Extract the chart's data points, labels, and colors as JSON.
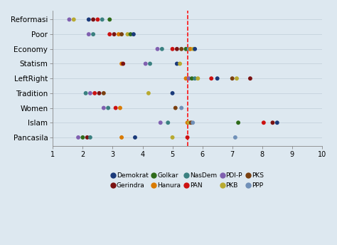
{
  "categories": [
    "Reformasi",
    "Poor",
    "Economy",
    "Statism",
    "LeftRight",
    "Tradition",
    "Women",
    "Islam",
    "Pancasila"
  ],
  "dashed_line_x": 5.5,
  "xlim": [
    1,
    10
  ],
  "xticks": [
    1,
    2,
    3,
    4,
    5,
    6,
    7,
    8,
    9,
    10
  ],
  "background_color": "#dde8f0",
  "party_colors": {
    "Demokrat": "#1a3a7a",
    "Gerindra": "#7a1212",
    "Golkar": "#2e6b1a",
    "Hanura": "#d97a00",
    "NasDem": "#3a8080",
    "PAN": "#cc1111",
    "PDI-P": "#8060b0",
    "PKB": "#b8aa30",
    "PKS": "#7a4010",
    "PPP": "#7090b8"
  },
  "parties_order": [
    "Demokrat",
    "Gerindra",
    "Golkar",
    "Hanura",
    "NasDem",
    "PAN",
    "PDI-P",
    "PKB",
    "PKS",
    "PPP"
  ],
  "dot_data": [
    {
      "cat": "Reformasi",
      "party": "PDI-P",
      "x": 1.55
    },
    {
      "cat": "Reformasi",
      "party": "PKB",
      "x": 1.7
    },
    {
      "cat": "Reformasi",
      "party": "Demokrat",
      "x": 2.2
    },
    {
      "cat": "Reformasi",
      "party": "Gerindra",
      "x": 2.35
    },
    {
      "cat": "Reformasi",
      "party": "PAN",
      "x": 2.5
    },
    {
      "cat": "Reformasi",
      "party": "NasDem",
      "x": 2.65
    },
    {
      "cat": "Reformasi",
      "party": "Golkar",
      "x": 2.9
    },
    {
      "cat": "Poor",
      "party": "PDI-P",
      "x": 2.2
    },
    {
      "cat": "Poor",
      "party": "NasDem",
      "x": 2.35
    },
    {
      "cat": "Poor",
      "party": "PAN",
      "x": 2.9
    },
    {
      "cat": "Poor",
      "party": "Gerindra",
      "x": 3.05
    },
    {
      "cat": "Poor",
      "party": "Hanura",
      "x": 3.2
    },
    {
      "cat": "Poor",
      "party": "PKS",
      "x": 3.3
    },
    {
      "cat": "Poor",
      "party": "PKB",
      "x": 3.5
    },
    {
      "cat": "Poor",
      "party": "Golkar",
      "x": 3.6
    },
    {
      "cat": "Poor",
      "party": "Demokrat",
      "x": 3.7
    },
    {
      "cat": "Economy",
      "party": "PDI-P",
      "x": 4.5
    },
    {
      "cat": "Economy",
      "party": "NasDem",
      "x": 4.65
    },
    {
      "cat": "Economy",
      "party": "PAN",
      "x": 5.0
    },
    {
      "cat": "Economy",
      "party": "Gerindra",
      "x": 5.15
    },
    {
      "cat": "Economy",
      "party": "PKS",
      "x": 5.3
    },
    {
      "cat": "Economy",
      "party": "Golkar",
      "x": 5.45
    },
    {
      "cat": "Economy",
      "party": "PPP",
      "x": 5.55
    },
    {
      "cat": "Economy",
      "party": "Hanura",
      "x": 5.6
    },
    {
      "cat": "Economy",
      "party": "PKB",
      "x": 5.7
    },
    {
      "cat": "Economy",
      "party": "Demokrat",
      "x": 5.75
    },
    {
      "cat": "Statism",
      "party": "Hanura",
      "x": 3.3
    },
    {
      "cat": "Statism",
      "party": "Gerindra",
      "x": 3.35
    },
    {
      "cat": "Statism",
      "party": "PDI-P",
      "x": 4.1
    },
    {
      "cat": "Statism",
      "party": "NasDem",
      "x": 4.25
    },
    {
      "cat": "Statism",
      "party": "Demokrat",
      "x": 5.15
    },
    {
      "cat": "Statism",
      "party": "PKB",
      "x": 5.25
    },
    {
      "cat": "LeftRight",
      "party": "Hanura",
      "x": 5.45
    },
    {
      "cat": "LeftRight",
      "party": "PDI-P",
      "x": 5.55
    },
    {
      "cat": "LeftRight",
      "party": "Golkar",
      "x": 5.65
    },
    {
      "cat": "LeftRight",
      "party": "NasDem",
      "x": 5.75
    },
    {
      "cat": "LeftRight",
      "party": "PKB",
      "x": 5.85
    },
    {
      "cat": "LeftRight",
      "party": "PAN",
      "x": 6.3
    },
    {
      "cat": "LeftRight",
      "party": "Demokrat",
      "x": 6.5
    },
    {
      "cat": "LeftRight",
      "party": "PKS",
      "x": 7.0
    },
    {
      "cat": "LeftRight",
      "party": "PKB",
      "x": 7.15
    },
    {
      "cat": "LeftRight",
      "party": "Gerindra",
      "x": 7.6
    },
    {
      "cat": "Tradition",
      "party": "NasDem",
      "x": 2.1
    },
    {
      "cat": "Tradition",
      "party": "PDI-P",
      "x": 2.25
    },
    {
      "cat": "Tradition",
      "party": "PAN",
      "x": 2.4
    },
    {
      "cat": "Tradition",
      "party": "Gerindra",
      "x": 2.55
    },
    {
      "cat": "Tradition",
      "party": "PKS",
      "x": 2.7
    },
    {
      "cat": "Tradition",
      "party": "PKB",
      "x": 4.2
    },
    {
      "cat": "Tradition",
      "party": "Demokrat",
      "x": 5.0
    },
    {
      "cat": "Women",
      "party": "PDI-P",
      "x": 2.7
    },
    {
      "cat": "Women",
      "party": "NasDem",
      "x": 2.85
    },
    {
      "cat": "Women",
      "party": "PAN",
      "x": 3.1
    },
    {
      "cat": "Women",
      "party": "Hanura",
      "x": 3.25
    },
    {
      "cat": "Women",
      "party": "PKS",
      "x": 5.1
    },
    {
      "cat": "Women",
      "party": "PPP",
      "x": 5.3
    },
    {
      "cat": "Islam",
      "party": "PDI-P",
      "x": 4.6
    },
    {
      "cat": "Islam",
      "party": "NasDem",
      "x": 4.85
    },
    {
      "cat": "Islam",
      "party": "Hanura",
      "x": 5.5
    },
    {
      "cat": "Islam",
      "party": "PKB",
      "x": 5.55
    },
    {
      "cat": "Islam",
      "party": "PKS",
      "x": 5.62
    },
    {
      "cat": "Islam",
      "party": "PPP",
      "x": 5.68
    },
    {
      "cat": "Islam",
      "party": "Golkar",
      "x": 7.2
    },
    {
      "cat": "Islam",
      "party": "PAN",
      "x": 8.05
    },
    {
      "cat": "Islam",
      "party": "Gerindra",
      "x": 8.35
    },
    {
      "cat": "Islam",
      "party": "Demokrat",
      "x": 8.5
    },
    {
      "cat": "Pancasila",
      "party": "PDI-P",
      "x": 1.85
    },
    {
      "cat": "Pancasila",
      "party": "Golkar",
      "x": 2.0
    },
    {
      "cat": "Pancasila",
      "party": "Gerindra",
      "x": 2.15
    },
    {
      "cat": "Pancasila",
      "party": "NasDem",
      "x": 2.25
    },
    {
      "cat": "Pancasila",
      "party": "Hanura",
      "x": 3.3
    },
    {
      "cat": "Pancasila",
      "party": "Demokrat",
      "x": 3.75
    },
    {
      "cat": "Pancasila",
      "party": "PKB",
      "x": 5.0
    },
    {
      "cat": "Pancasila",
      "party": "PAN",
      "x": 5.5
    },
    {
      "cat": "Pancasila",
      "party": "PPP",
      "x": 7.1
    }
  ],
  "figsize": [
    4.74,
    3.44
  ],
  "dpi": 100
}
